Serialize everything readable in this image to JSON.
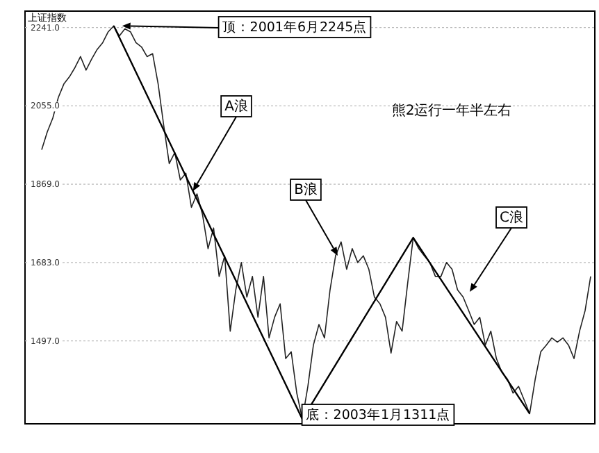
{
  "chart_data": {
    "type": "line",
    "title": "上证指数",
    "grid": "y",
    "tick_labels": "y",
    "ylim": [
      1300,
      2280
    ],
    "yticks": [
      {
        "value": 1497,
        "label": "1497.0"
      },
      {
        "value": 1683,
        "label": "1683.0"
      },
      {
        "value": 1869,
        "label": "1869.0"
      },
      {
        "value": 2055,
        "label": "2055.0"
      },
      {
        "value": 2241,
        "label": "2241.0"
      }
    ],
    "categories": [
      null,
      null,
      null,
      null,
      null,
      null,
      null,
      null,
      null,
      null,
      null,
      null,
      null,
      null,
      null,
      null,
      null,
      null,
      null,
      null,
      null,
      null,
      null,
      null,
      null,
      null,
      null,
      null,
      null,
      null,
      null,
      null,
      null,
      null,
      null,
      null,
      null,
      null,
      null,
      null,
      null,
      null,
      null,
      null,
      null,
      null,
      null,
      null,
      null,
      null,
      null,
      null,
      null,
      null,
      null,
      null,
      null,
      null,
      null,
      null,
      null,
      null,
      null,
      null,
      null,
      null,
      null,
      null,
      null,
      null,
      null,
      null,
      null,
      null,
      null,
      null,
      null,
      null,
      null,
      null,
      null,
      null,
      null,
      null,
      null,
      null,
      null,
      null,
      null,
      null,
      null,
      null,
      null,
      null,
      null,
      null,
      null,
      null,
      null,
      null
    ],
    "series": [
      {
        "color": "#222222",
        "values": [
          1951,
          1993,
          2026,
          2075,
          2107,
          2124,
          2146,
          2172,
          2140,
          2166,
          2189,
          2205,
          2231,
          2245,
          2221,
          2238,
          2231,
          2205,
          2195,
          2172,
          2179,
          2107,
          2009,
          1918,
          1944,
          1879,
          1895,
          1814,
          1846,
          1797,
          1716,
          1765,
          1650,
          1699,
          1520,
          1618,
          1683,
          1601,
          1650,
          1553,
          1650,
          1504,
          1553,
          1585,
          1455,
          1471,
          1373,
          1311,
          1389,
          1487,
          1536,
          1504,
          1618,
          1699,
          1732,
          1667,
          1716,
          1683,
          1699,
          1667,
          1601,
          1585,
          1553,
          1468,
          1543,
          1520,
          1634,
          1742,
          1716,
          1699,
          1683,
          1650,
          1650,
          1683,
          1667,
          1618,
          1601,
          1569,
          1536,
          1553,
          1487,
          1520,
          1455,
          1422,
          1406,
          1373,
          1389,
          1357,
          1324,
          1406,
          1471,
          1487,
          1504,
          1494,
          1504,
          1487,
          1455,
          1520,
          1569,
          1650
        ]
      },
      {
        "color": "#000000",
        "values": [
          null,
          null,
          null,
          null,
          null,
          null,
          null,
          null,
          null,
          null,
          null,
          null,
          null,
          2245,
          null,
          null,
          null,
          null,
          null,
          null,
          null,
          null,
          null,
          null,
          null,
          null,
          null,
          null,
          null,
          null,
          null,
          null,
          null,
          null,
          null,
          null,
          null,
          null,
          null,
          null,
          null,
          null,
          null,
          null,
          null,
          null,
          null,
          1311,
          null,
          null,
          null,
          null,
          null,
          null,
          null,
          null,
          null,
          null,
          null,
          null,
          null,
          null,
          null,
          null,
          null,
          null,
          null,
          1742,
          null,
          null,
          null,
          null,
          null,
          null,
          null,
          null,
          null,
          null,
          null,
          null,
          null,
          null,
          null,
          null,
          null,
          null,
          null,
          null,
          1324,
          null,
          null,
          null,
          null,
          null,
          null,
          null,
          null,
          null,
          null,
          null
        ]
      }
    ],
    "annotations": [
      "顶：2001年6月2245点",
      "A浪",
      "B浪",
      "C浪",
      "底：2003年1月1311点",
      "熊2运行一年半左右"
    ]
  }
}
